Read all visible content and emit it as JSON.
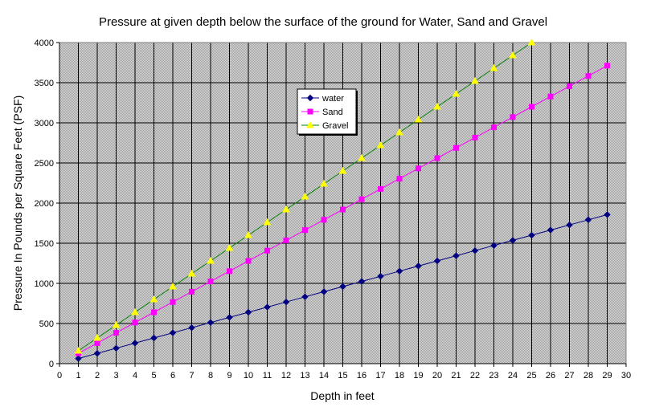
{
  "chart_data": {
    "type": "line",
    "title": "Pressure at given depth below the surface of the ground for Water, Sand and Gravel",
    "xlabel": "Depth in feet",
    "ylabel": "Pressure In Pounds per Square Feet (PSF)",
    "xlim": [
      0,
      30
    ],
    "ylim": [
      0,
      4000
    ],
    "x_ticks": [
      0,
      1,
      2,
      3,
      4,
      5,
      6,
      7,
      8,
      9,
      10,
      11,
      12,
      13,
      14,
      15,
      16,
      17,
      18,
      19,
      20,
      21,
      22,
      23,
      24,
      25,
      26,
      27,
      28,
      29,
      30
    ],
    "y_ticks": [
      0,
      500,
      1000,
      1500,
      2000,
      2500,
      3000,
      3500,
      4000
    ],
    "grid": true,
    "legend_position": "upper-left-center",
    "series": [
      {
        "name": "water",
        "color": "#000080",
        "marker": "diamond",
        "x": [
          1,
          2,
          3,
          4,
          5,
          6,
          7,
          8,
          9,
          10,
          11,
          12,
          13,
          14,
          15,
          16,
          17,
          18,
          19,
          20,
          21,
          22,
          23,
          24,
          25,
          26,
          27,
          28,
          29
        ],
        "values": [
          64,
          128,
          192,
          256,
          320,
          384,
          448,
          512,
          576,
          640,
          704,
          768,
          832,
          896,
          960,
          1024,
          1088,
          1152,
          1216,
          1280,
          1344,
          1408,
          1472,
          1536,
          1600,
          1664,
          1728,
          1792,
          1856
        ]
      },
      {
        "name": "Sand",
        "color": "#ff00ff",
        "marker": "square",
        "x": [
          1,
          2,
          3,
          4,
          5,
          6,
          7,
          8,
          9,
          10,
          11,
          12,
          13,
          14,
          15,
          16,
          17,
          18,
          19,
          20,
          21,
          22,
          23,
          24,
          25,
          26,
          27,
          28,
          29
        ],
        "values": [
          128,
          256,
          384,
          512,
          640,
          768,
          896,
          1024,
          1152,
          1280,
          1408,
          1536,
          1664,
          1792,
          1920,
          2048,
          2176,
          2304,
          2432,
          2560,
          2688,
          2816,
          2944,
          3072,
          3200,
          3328,
          3456,
          3584,
          3712
        ]
      },
      {
        "name": "Gravel",
        "color": "#ffff00",
        "line_color": "#008000",
        "marker": "triangle",
        "x": [
          1,
          2,
          3,
          4,
          5,
          6,
          7,
          8,
          9,
          10,
          11,
          12,
          13,
          14,
          15,
          16,
          17,
          18,
          19,
          20,
          21,
          22,
          23,
          24,
          25
        ],
        "values": [
          160,
          320,
          480,
          640,
          800,
          960,
          1120,
          1280,
          1440,
          1600,
          1760,
          1920,
          2080,
          2240,
          2400,
          2560,
          2720,
          2880,
          3040,
          3200,
          3360,
          3520,
          3680,
          3840,
          4000
        ]
      }
    ]
  }
}
